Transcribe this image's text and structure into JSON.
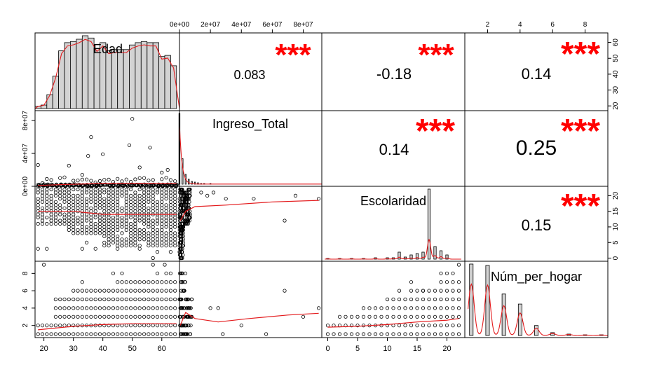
{
  "chart_data": {
    "type": "scatter",
    "title": "",
    "variables": [
      "Edad",
      "Ingreso_Total",
      "Escolaridad",
      "Núm_per_hogar"
    ],
    "ranges": {
      "Edad": [
        17,
        66
      ],
      "Ingreso_Total": [
        0,
        92000000
      ],
      "Escolaridad": [
        -1,
        23
      ],
      "Núm_per_hogar": [
        0.6,
        9.4
      ]
    },
    "ticks": {
      "top_Ingreso_Total": [
        "0e+00",
        "2e+07",
        "4e+07",
        "6e+07",
        "8e+07"
      ],
      "top_Núm_per_hogar": [
        "2",
        "4",
        "6",
        "8"
      ],
      "right_Edad": [
        "20",
        "30",
        "40",
        "50",
        "60"
      ],
      "right_Escolaridad": [
        "0",
        "5",
        "10",
        "15",
        "20"
      ],
      "left_Ingreso_Total": [
        "0e+00",
        "4e+07",
        "8e+07"
      ],
      "left_Núm_per_hogar": [
        "2",
        "4",
        "6",
        "8"
      ],
      "bottom_Edad": [
        "20",
        "30",
        "40",
        "50",
        "60"
      ],
      "bottom_Escolaridad": [
        "0",
        "5",
        "10",
        "15",
        "20"
      ]
    },
    "correlations": [
      {
        "row": 0,
        "col": 1,
        "value": "0.083",
        "stars": "***"
      },
      {
        "row": 0,
        "col": 2,
        "value": "-0.18",
        "stars": "***"
      },
      {
        "row": 0,
        "col": 3,
        "value": "0.14",
        "stars": "***"
      },
      {
        "row": 1,
        "col": 2,
        "value": "0.14",
        "stars": "***"
      },
      {
        "row": 1,
        "col": 3,
        "value": "0.25",
        "stars": "***"
      },
      {
        "row": 2,
        "col": 3,
        "value": "0.15",
        "stars": "***"
      }
    ],
    "histograms": {
      "Edad": {
        "x": [
          18,
          20,
          22,
          24,
          26,
          28,
          30,
          32,
          34,
          36,
          38,
          40,
          42,
          44,
          46,
          48,
          50,
          52,
          54,
          56,
          58,
          60,
          62,
          64
        ],
        "counts": [
          2,
          3,
          12,
          28,
          50,
          57,
          58,
          60,
          63,
          61,
          52,
          57,
          50,
          51,
          51,
          51,
          55,
          57,
          58,
          57,
          57,
          45,
          46,
          37
        ]
      },
      "Ingreso_Total": {
        "x": [
          0,
          2000000,
          4000000,
          6000000,
          8000000,
          10000000,
          12000000,
          14000000,
          16000000,
          20000000
        ],
        "counts": [
          100,
          36,
          14,
          7,
          4,
          3,
          2,
          1,
          1,
          1
        ]
      },
      "Escolaridad": {
        "x": [
          0,
          2,
          4,
          6,
          8,
          10,
          11,
          12,
          13,
          14,
          15,
          16,
          17,
          18,
          19,
          20
        ],
        "counts": [
          1,
          1,
          1,
          1,
          2,
          2,
          2,
          10,
          3,
          6,
          8,
          10,
          100,
          18,
          12,
          6
        ]
      },
      "Núm_per_hogar": {
        "x": [
          1,
          2,
          3,
          4,
          5,
          6,
          7,
          8,
          9
        ],
        "counts": [
          100,
          98,
          58,
          44,
          14,
          4,
          2,
          1,
          1
        ]
      }
    },
    "smooth_lines": {
      "Edad_vs_Ingreso_Total": [
        [
          18,
          1000000
        ],
        [
          25,
          2000000
        ],
        [
          35,
          3000000
        ],
        [
          45,
          3500000
        ],
        [
          55,
          3500000
        ],
        [
          65,
          3200000
        ]
      ],
      "Edad_vs_Escolaridad": [
        [
          18,
          15
        ],
        [
          30,
          15
        ],
        [
          40,
          14
        ],
        [
          50,
          14
        ],
        [
          65,
          14
        ]
      ],
      "Edad_vs_Núm_per_hogar": [
        [
          18,
          1.5
        ],
        [
          30,
          1.9
        ],
        [
          40,
          2.1
        ],
        [
          50,
          2.2
        ],
        [
          65,
          2.2
        ]
      ],
      "Ingreso_Total_vs_Escolaridad": [
        [
          500000,
          12
        ],
        [
          4000000,
          15
        ],
        [
          10000000,
          16.5
        ],
        [
          30000000,
          17
        ],
        [
          60000000,
          18
        ],
        [
          90000000,
          18.5
        ]
      ],
      "Ingreso_Total_vs_Núm_per_hogar": [
        [
          500000,
          2
        ],
        [
          4000000,
          3.5
        ],
        [
          10000000,
          2.8
        ],
        [
          25000000,
          2.4
        ],
        [
          45000000,
          2.8
        ],
        [
          70000000,
          3.2
        ],
        [
          90000000,
          3.4
        ]
      ],
      "Escolaridad_vs_Núm_per_hogar": [
        [
          0,
          1.8
        ],
        [
          5,
          1.9
        ],
        [
          10,
          2.1
        ],
        [
          15,
          2.4
        ],
        [
          20,
          2.6
        ],
        [
          22,
          2.8
        ]
      ]
    }
  }
}
